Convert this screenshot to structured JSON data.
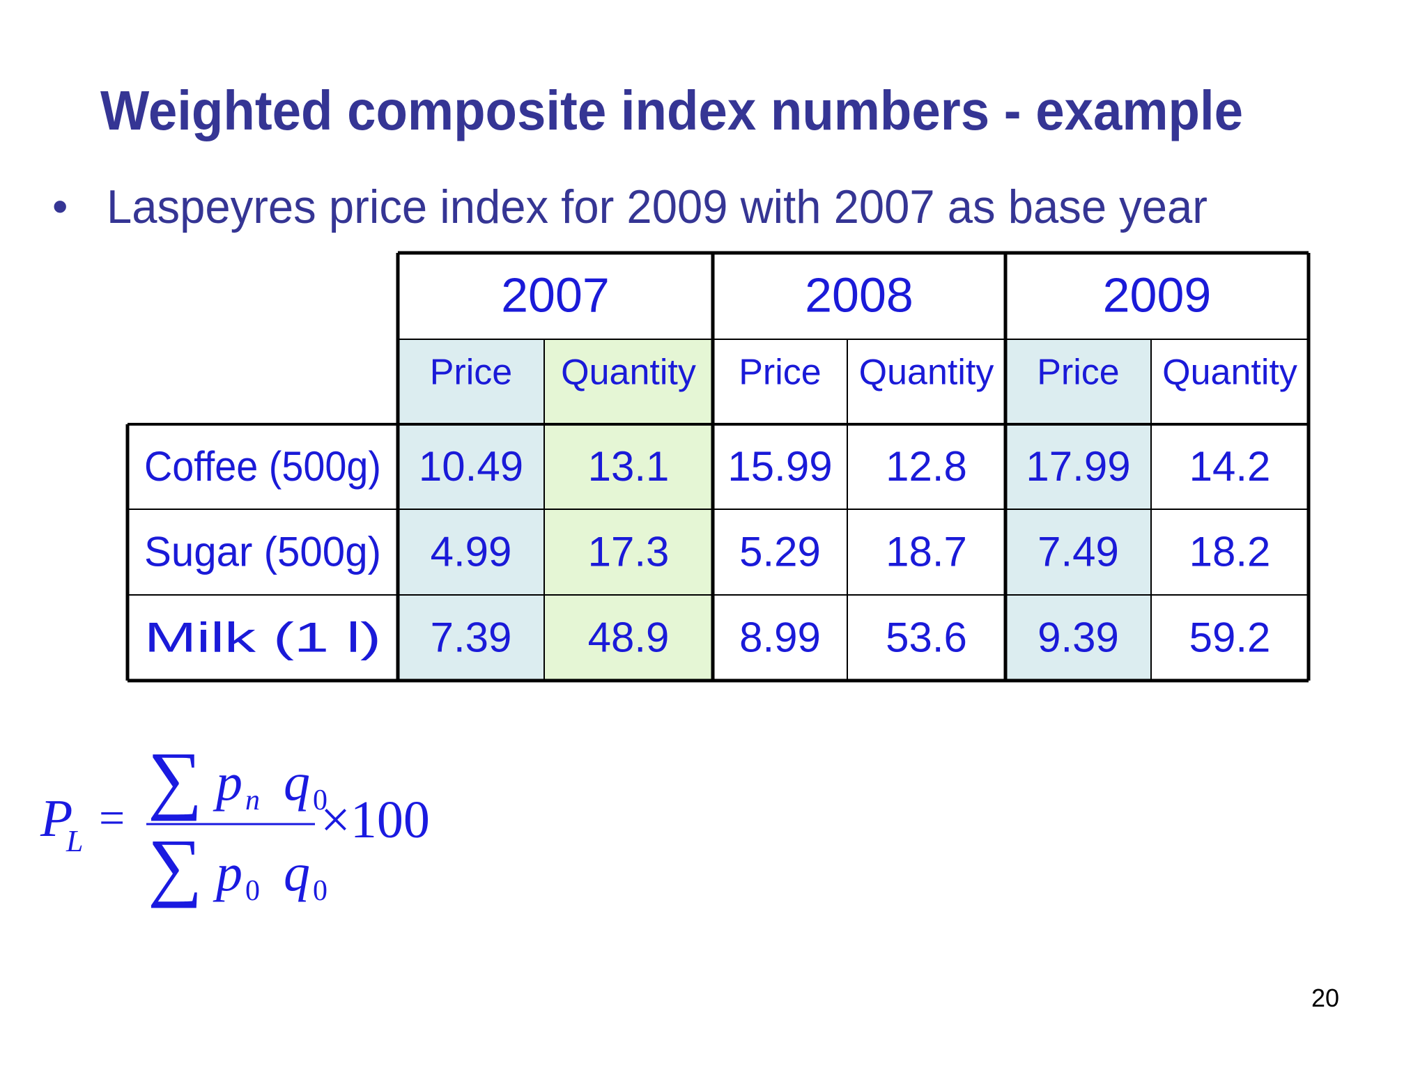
{
  "title": "Weighted composite index numbers - example",
  "bullet": "Laspeyres price index for 2009 with 2007 as base year",
  "table": {
    "years": [
      "2007",
      "2008",
      "2009"
    ],
    "subheaders": [
      "Price",
      "Quantity",
      "Price",
      "Quantity",
      "Price",
      "Quantity"
    ],
    "rows": [
      {
        "label": "Coffee (500g)",
        "cells": [
          10.49,
          13.1,
          15.99,
          12.8,
          17.99,
          14.2
        ]
      },
      {
        "label": "Sugar (500g)",
        "cells": [
          4.99,
          17.3,
          5.29,
          18.7,
          7.49,
          18.2
        ]
      },
      {
        "label": "Milk (1 l)",
        "cells": [
          7.39,
          48.9,
          8.99,
          53.6,
          9.39,
          59.2
        ]
      }
    ]
  },
  "formula": {
    "symbol": "P",
    "symbol_subscript": "L",
    "equals": "=",
    "sum": "∑",
    "numerator": [
      {
        "base": "p",
        "sub": "n"
      },
      {
        "base": "q",
        "sub": "0"
      }
    ],
    "denominator": [
      {
        "base": "p",
        "sub": "0"
      },
      {
        "base": "q",
        "sub": "0"
      }
    ],
    "multiplier": "×100"
  },
  "page_number": "20"
}
